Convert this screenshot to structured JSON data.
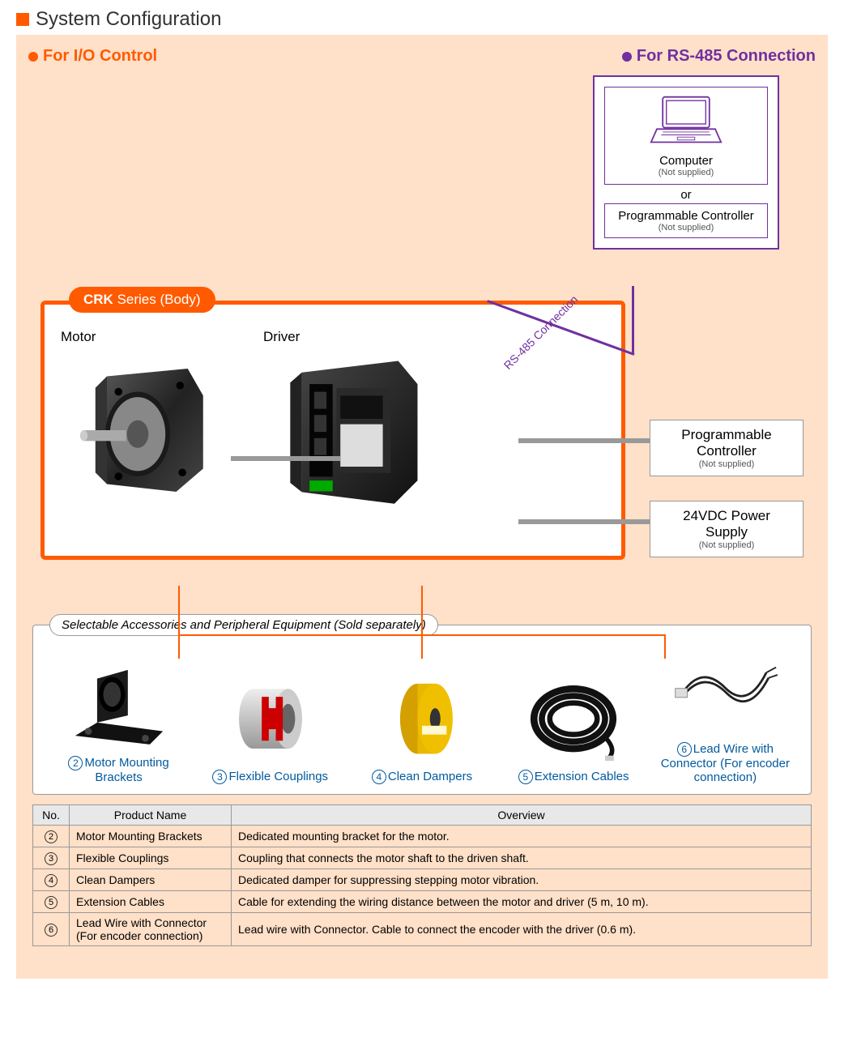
{
  "title": "System Configuration",
  "sub_io": "For I/O Control",
  "sub_rs485": "For RS-485 Connection",
  "rs485_box": {
    "computer": "Computer",
    "not_supplied": "(Not supplied)",
    "or": "or",
    "prog_ctrl": "Programmable Controller"
  },
  "crk": {
    "series_bold": "CRK",
    "series_rest": " Series (Body)",
    "motor_label": "Motor",
    "driver_label": "Driver"
  },
  "rs485_conn_label": "RS-485 Connection",
  "ext1": {
    "title": "Programmable Controller",
    "note": "(Not supplied)"
  },
  "ext2": {
    "title": "24VDC Power Supply",
    "note": "(Not supplied)"
  },
  "acc_panel_title": "Selectable Accessories and Peripheral Equipment (Sold separately)",
  "acc": [
    {
      "num": "2",
      "label": "Motor Mounting Brackets"
    },
    {
      "num": "3",
      "label": "Flexible Couplings"
    },
    {
      "num": "4",
      "label": "Clean Dampers"
    },
    {
      "num": "5",
      "label": "Extension Cables"
    },
    {
      "num": "6",
      "label": "Lead Wire with Connector (For encoder connection)"
    }
  ],
  "table": {
    "headers": [
      "No.",
      "Product Name",
      "Overview"
    ],
    "rows": [
      {
        "no": "2",
        "name": "Motor Mounting Brackets",
        "ov": "Dedicated mounting bracket for the motor."
      },
      {
        "no": "3",
        "name": "Flexible Couplings",
        "ov": "Coupling that connects the motor shaft to the driven shaft."
      },
      {
        "no": "4",
        "name": "Clean Dampers",
        "ov": "Dedicated damper for suppressing stepping motor vibration."
      },
      {
        "no": "5",
        "name": "Extension Cables",
        "ov": "Cable for extending the wiring distance between the motor and driver (5 m, 10 m)."
      },
      {
        "no": "6",
        "name": "Lead Wire with Connector (For encoder connection)",
        "ov": "Lead wire with Connector. Cable to connect the encoder with the driver (0.6 m)."
      }
    ]
  },
  "colors": {
    "orange": "#ff5a00",
    "purple": "#7030a0",
    "peach_bg": "#ffe0c8",
    "link_blue": "#005a9e",
    "gray_conn": "#999999"
  }
}
